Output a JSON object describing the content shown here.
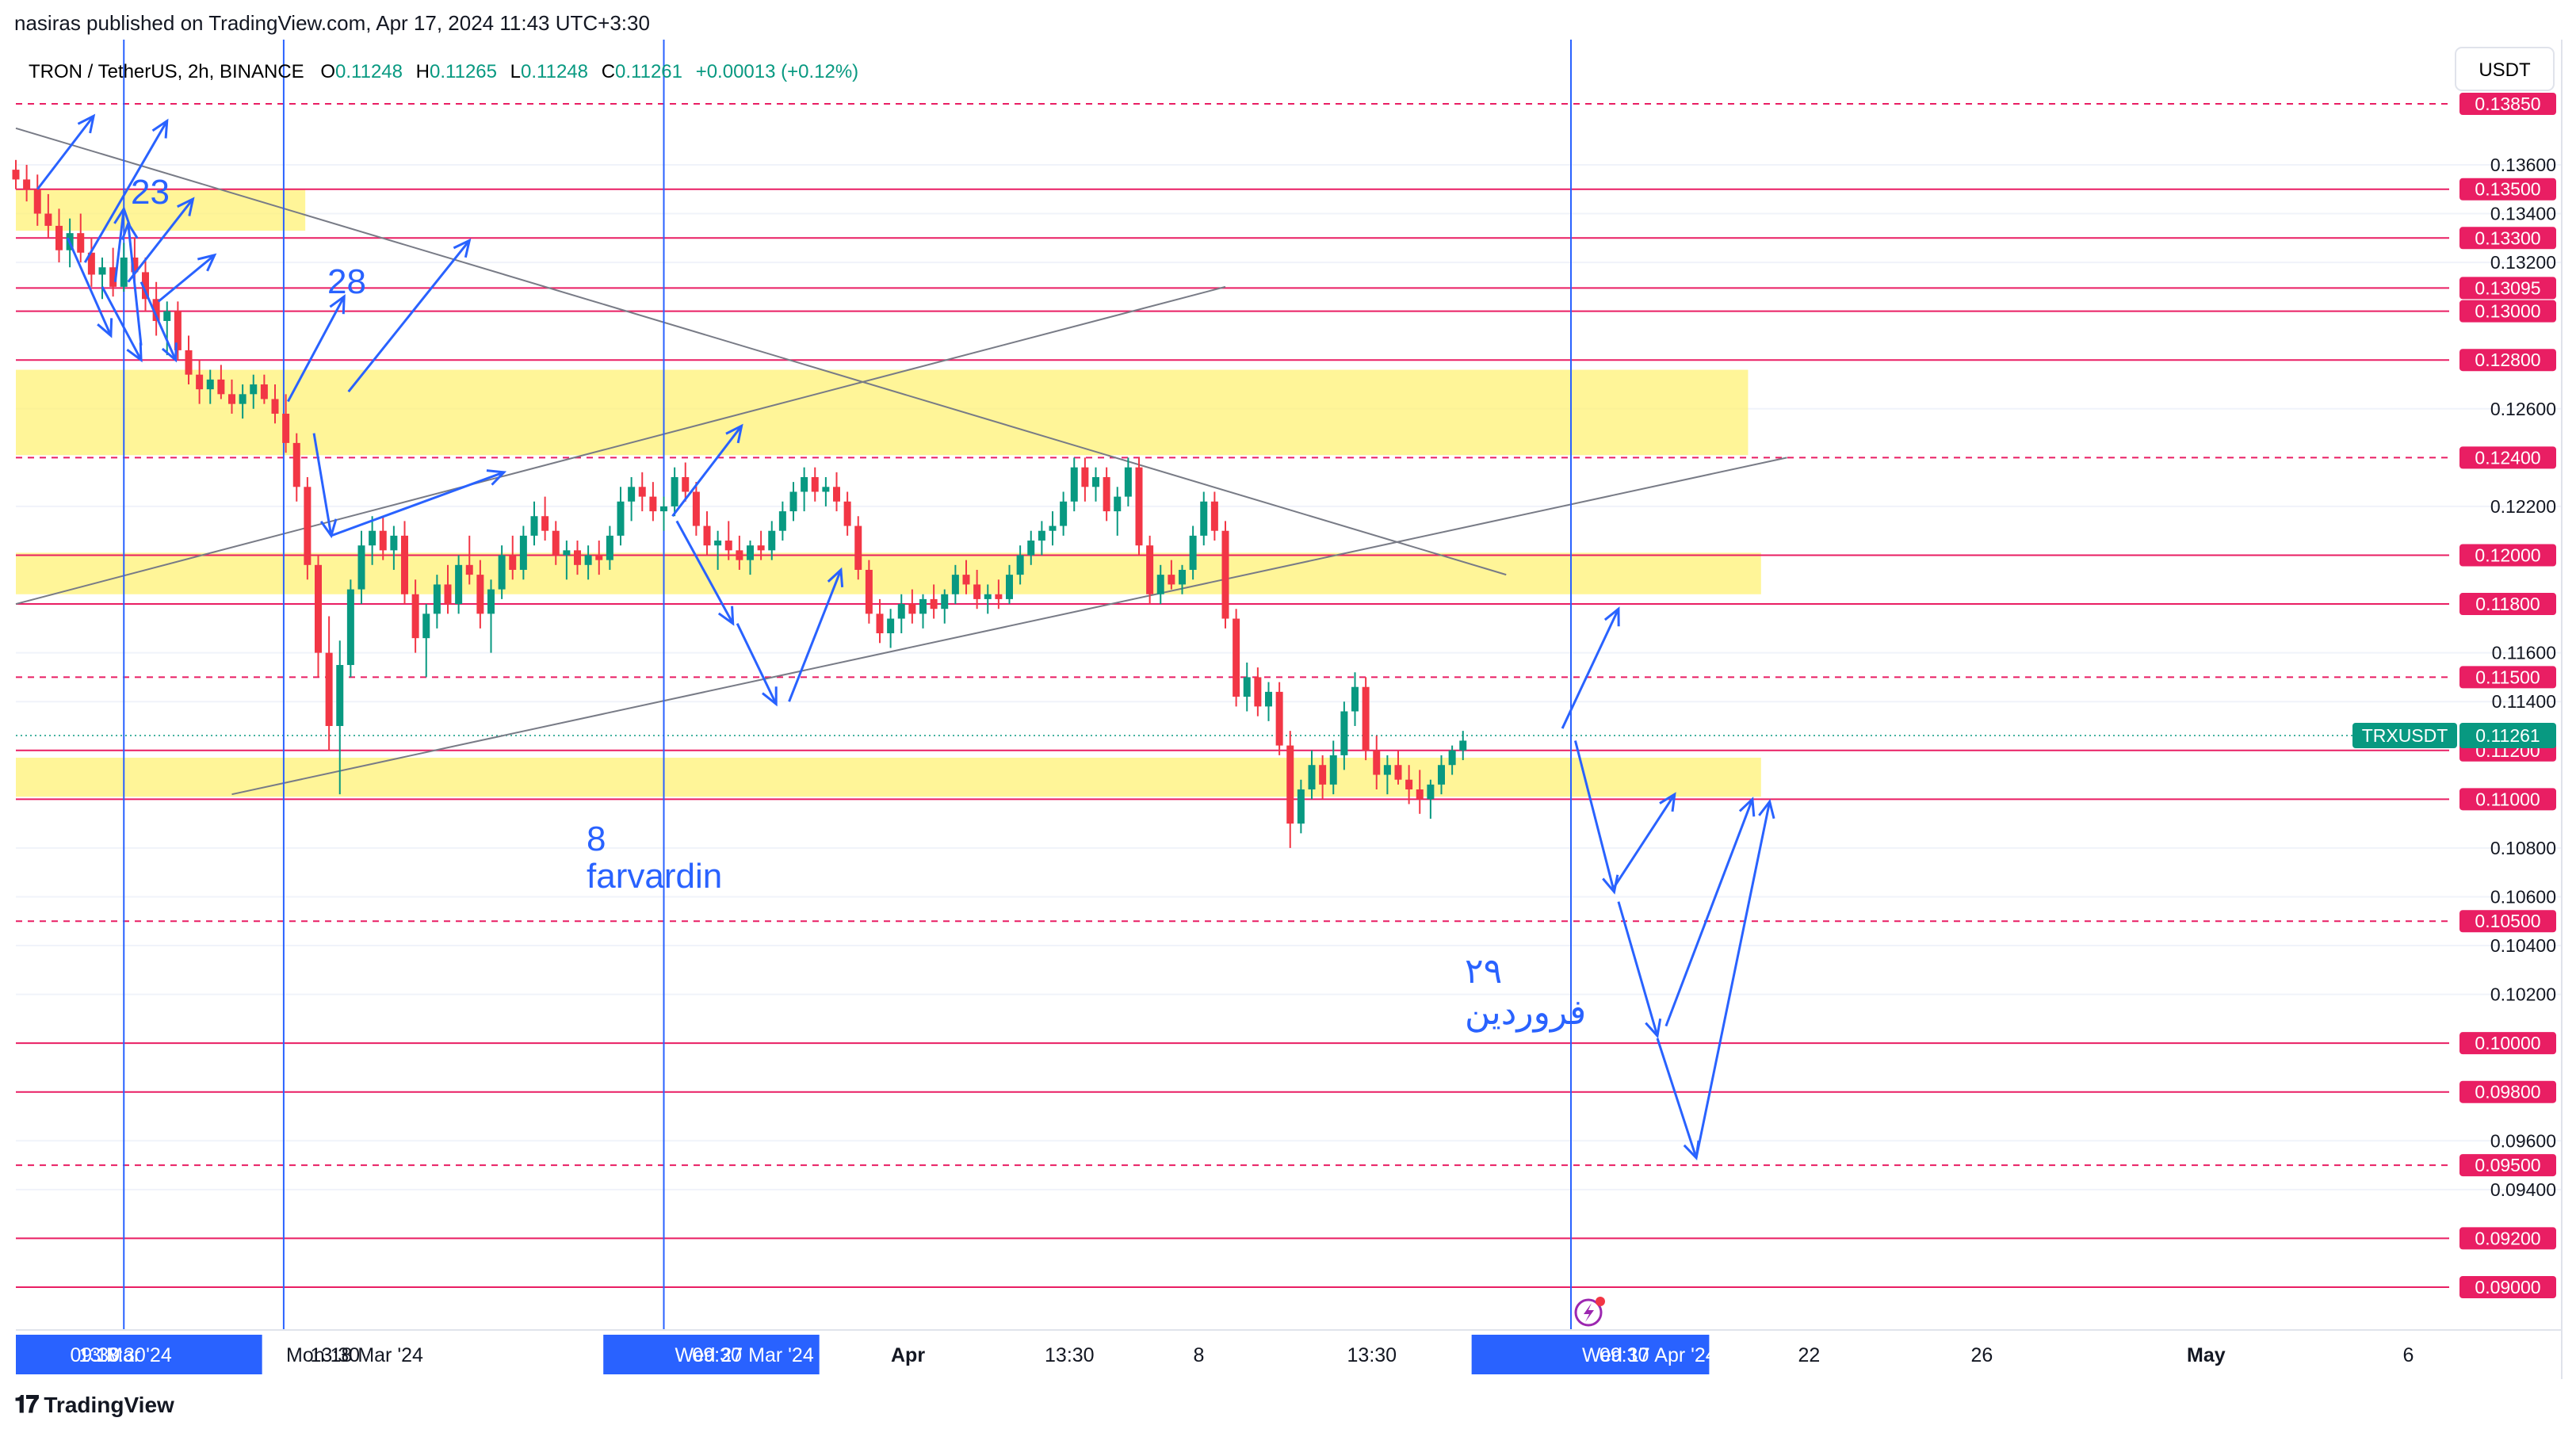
{
  "publish_info": "nasiras published on TradingView.com, Apr 17, 2024 11:43 UTC+3:30",
  "header": {
    "symbol": "TRON / TetherUS, 2h, BINANCE",
    "o_label": "O",
    "o_value": "0.11248",
    "h_label": "H",
    "h_value": "0.11265",
    "l_label": "L",
    "l_value": "0.11248",
    "c_label": "C",
    "c_value": "0.11261",
    "change": "+0.00013 (+0.12%)"
  },
  "currency": "USDT",
  "footer_brand": "TradingView",
  "colors": {
    "up": "#089981",
    "down": "#f23645",
    "level": "#e91e63",
    "zone": "#fff176",
    "vline": "#2962ff",
    "arrow": "#2962ff",
    "trend": "#787b86"
  },
  "annotations": {
    "a23": "23",
    "a28": "28",
    "a8_num": "8",
    "a8_word": "farvardin",
    "a29_num": "۲۹",
    "a29_word": "فروردین"
  },
  "chart_data": {
    "type": "candlestick",
    "title": "TRON / TetherUS, 2h, BINANCE",
    "ylim": [
      0.0892,
      0.1398
    ],
    "x_ticks": [
      {
        "label": "09:30",
        "day": 13.0
      },
      {
        "label": "13 Mar '24",
        "day": 13.2
      },
      {
        "label": "13:30",
        "day": 13.6
      },
      {
        "label": "Mon 18 Mar '24",
        "day": 18.0
      },
      {
        "label": "13:30",
        "day": 18.56
      },
      {
        "label": "Wed 27 Mar '24",
        "day": 27.0
      },
      {
        "label": "09:30",
        "day": 27.4
      },
      {
        "label": "Apr",
        "day": 32.0
      },
      {
        "label": "13:30",
        "day": 35.56
      },
      {
        "label": "8",
        "day": 39.0
      },
      {
        "label": "13:30",
        "day": 42.56
      },
      {
        "label": "Wed 17 Apr '24",
        "day": 48.0
      },
      {
        "label": "09:30",
        "day": 48.4
      },
      {
        "label": "22",
        "day": 53.0
      },
      {
        "label": "26",
        "day": 57.0
      },
      {
        "label": "May",
        "day": 62.0
      },
      {
        "label": "6",
        "day": 67.0
      }
    ],
    "y_ticks": [
      0.136,
      0.134,
      0.132,
      0.126,
      0.122,
      0.116,
      0.114,
      0.108,
      0.106,
      0.104,
      0.102,
      0.096,
      0.094
    ],
    "levels": [
      {
        "price": 0.1385,
        "label": "0.13850",
        "style": "dashed"
      },
      {
        "price": 0.135,
        "label": "0.13500",
        "style": "solid"
      },
      {
        "price": 0.133,
        "label": "0.13300",
        "style": "solid"
      },
      {
        "price": 0.13095,
        "label": "0.13095",
        "style": "solid"
      },
      {
        "price": 0.13,
        "label": "0.13000",
        "style": "solid"
      },
      {
        "price": 0.128,
        "label": "0.12800",
        "style": "solid"
      },
      {
        "price": 0.124,
        "label": "0.12400",
        "style": "dashed"
      },
      {
        "price": 0.12,
        "label": "0.12000",
        "style": "solid"
      },
      {
        "price": 0.118,
        "label": "0.11800",
        "style": "solid"
      },
      {
        "price": 0.115,
        "label": "0.11500",
        "style": "dashed"
      },
      {
        "price": 0.112,
        "label": "0.11200",
        "style": "solid"
      },
      {
        "price": 0.11,
        "label": "0.11000",
        "style": "solid"
      },
      {
        "price": 0.105,
        "label": "0.10500",
        "style": "dashed"
      },
      {
        "price": 0.1,
        "label": "0.10000",
        "style": "solid"
      },
      {
        "price": 0.098,
        "label": "0.09800",
        "style": "solid"
      },
      {
        "price": 0.095,
        "label": "0.09500",
        "style": "dashed"
      },
      {
        "price": 0.092,
        "label": "0.09200",
        "style": "solid"
      },
      {
        "price": 0.09,
        "label": "0.09000",
        "style": "solid"
      }
    ],
    "current_price": {
      "symbol": "TRXUSDT",
      "price": 0.11261,
      "label": "0.11261"
    },
    "zones": [
      {
        "day_start": 12.0,
        "day_end": 18.7,
        "top": 0.135,
        "bottom": 0.1333
      },
      {
        "day_start": 12.0,
        "day_end": 52.1,
        "top": 0.1276,
        "bottom": 0.1241
      },
      {
        "day_start": 12.0,
        "day_end": 52.4,
        "top": 0.1201,
        "bottom": 0.1184
      },
      {
        "day_start": 12.0,
        "day_end": 52.4,
        "top": 0.1117,
        "bottom": 0.1101
      }
    ],
    "vertical_lines_day": [
      14.5,
      18.2,
      27.0,
      48.0
    ],
    "trendlines": [
      {
        "points": [
          [
            12.0,
            0.1375
          ],
          [
            46.5,
            0.1192
          ]
        ]
      },
      {
        "points": [
          [
            12.0,
            0.118
          ],
          [
            40.0,
            0.131
          ]
        ]
      },
      {
        "points": [
          [
            17.0,
            0.1102
          ],
          [
            53.0,
            0.124
          ]
        ]
      }
    ],
    "candles": [
      [
        12.0,
        0.1358,
        0.1362,
        0.135,
        0.1354
      ],
      [
        12.25,
        0.1354,
        0.136,
        0.1345,
        0.135
      ],
      [
        12.5,
        0.135,
        0.1356,
        0.1335,
        0.134
      ],
      [
        12.75,
        0.134,
        0.1348,
        0.133,
        0.1335
      ],
      [
        13.0,
        0.1335,
        0.1342,
        0.132,
        0.1325
      ],
      [
        13.25,
        0.1325,
        0.1338,
        0.1318,
        0.1332
      ],
      [
        13.5,
        0.1332,
        0.134,
        0.132,
        0.1324
      ],
      [
        13.75,
        0.1324,
        0.133,
        0.131,
        0.1315
      ],
      [
        14.0,
        0.1315,
        0.1322,
        0.1305,
        0.1318
      ],
      [
        14.25,
        0.1318,
        0.1326,
        0.1306,
        0.131
      ],
      [
        14.5,
        0.131,
        0.1328,
        0.1308,
        0.1322
      ],
      [
        14.75,
        0.1322,
        0.133,
        0.1312,
        0.1316
      ],
      [
        15.0,
        0.1316,
        0.1322,
        0.13,
        0.1305
      ],
      [
        15.25,
        0.1305,
        0.1312,
        0.129,
        0.1296
      ],
      [
        15.5,
        0.1296,
        0.1304,
        0.1282,
        0.13
      ],
      [
        15.75,
        0.13,
        0.1304,
        0.128,
        0.1284
      ],
      [
        16.0,
        0.1284,
        0.129,
        0.127,
        0.1274
      ],
      [
        16.25,
        0.1274,
        0.128,
        0.1262,
        0.1268
      ],
      [
        16.5,
        0.1268,
        0.1276,
        0.1262,
        0.1272
      ],
      [
        16.75,
        0.1272,
        0.1278,
        0.1264,
        0.1266
      ],
      [
        17.0,
        0.1266,
        0.1272,
        0.1258,
        0.1262
      ],
      [
        17.25,
        0.1262,
        0.127,
        0.1256,
        0.1266
      ],
      [
        17.5,
        0.1266,
        0.1274,
        0.126,
        0.127
      ],
      [
        17.75,
        0.127,
        0.1274,
        0.1262,
        0.1264
      ],
      [
        18.0,
        0.1264,
        0.127,
        0.1254,
        0.1258
      ],
      [
        18.25,
        0.1258,
        0.1266,
        0.1242,
        0.1246
      ],
      [
        18.5,
        0.1246,
        0.125,
        0.1222,
        0.1228
      ],
      [
        18.75,
        0.1228,
        0.1232,
        0.119,
        0.1196
      ],
      [
        19.0,
        0.1196,
        0.12,
        0.115,
        0.116
      ],
      [
        19.25,
        0.116,
        0.1175,
        0.112,
        0.113
      ],
      [
        19.5,
        0.113,
        0.1165,
        0.1102,
        0.1155
      ],
      [
        19.75,
        0.1155,
        0.119,
        0.115,
        0.1186
      ],
      [
        20.0,
        0.1186,
        0.121,
        0.118,
        0.1204
      ],
      [
        20.25,
        0.1204,
        0.1216,
        0.1196,
        0.121
      ],
      [
        20.5,
        0.121,
        0.1216,
        0.1198,
        0.1202
      ],
      [
        20.75,
        0.1202,
        0.1212,
        0.1194,
        0.1208
      ],
      [
        21.0,
        0.1208,
        0.1214,
        0.118,
        0.1184
      ],
      [
        21.25,
        0.1184,
        0.119,
        0.116,
        0.1166
      ],
      [
        21.5,
        0.1166,
        0.118,
        0.115,
        0.1176
      ],
      [
        21.75,
        0.1176,
        0.1192,
        0.117,
        0.1188
      ],
      [
        22.0,
        0.1188,
        0.1196,
        0.1176,
        0.118
      ],
      [
        22.25,
        0.118,
        0.12,
        0.1176,
        0.1196
      ],
      [
        22.5,
        0.1196,
        0.1208,
        0.1188,
        0.1192
      ],
      [
        22.75,
        0.1192,
        0.1198,
        0.117,
        0.1176
      ],
      [
        23.0,
        0.1176,
        0.119,
        0.116,
        0.1186
      ],
      [
        23.25,
        0.1186,
        0.1204,
        0.1182,
        0.12
      ],
      [
        23.5,
        0.12,
        0.1208,
        0.119,
        0.1194
      ],
      [
        23.75,
        0.1194,
        0.1212,
        0.119,
        0.1208
      ],
      [
        24.0,
        0.1208,
        0.1222,
        0.1204,
        0.1216
      ],
      [
        24.25,
        0.1216,
        0.1224,
        0.1206,
        0.121
      ],
      [
        24.5,
        0.121,
        0.1214,
        0.1196,
        0.12
      ],
      [
        24.75,
        0.12,
        0.1206,
        0.119,
        0.1202
      ],
      [
        25.0,
        0.1202,
        0.1206,
        0.1192,
        0.1196
      ],
      [
        25.25,
        0.1196,
        0.1204,
        0.119,
        0.12
      ],
      [
        25.5,
        0.12,
        0.1206,
        0.1192,
        0.1198
      ],
      [
        25.75,
        0.1198,
        0.1212,
        0.1194,
        0.1208
      ],
      [
        26.0,
        0.1208,
        0.1228,
        0.1204,
        0.1222
      ],
      [
        26.25,
        0.1222,
        0.1232,
        0.1214,
        0.1228
      ],
      [
        26.5,
        0.1228,
        0.1234,
        0.1218,
        0.1224
      ],
      [
        26.75,
        0.1224,
        0.123,
        0.1214,
        0.1218
      ],
      [
        27.0,
        0.1218,
        0.1224,
        0.121,
        0.122
      ],
      [
        27.25,
        0.122,
        0.1236,
        0.1216,
        0.1232
      ],
      [
        27.5,
        0.1232,
        0.1238,
        0.1222,
        0.1226
      ],
      [
        27.75,
        0.1226,
        0.123,
        0.1208,
        0.1212
      ],
      [
        28.0,
        0.1212,
        0.1218,
        0.12,
        0.1204
      ],
      [
        28.25,
        0.1204,
        0.121,
        0.1194,
        0.1206
      ],
      [
        28.5,
        0.1206,
        0.1214,
        0.1198,
        0.1202
      ],
      [
        28.75,
        0.1202,
        0.1208,
        0.1194,
        0.1198
      ],
      [
        29.0,
        0.1198,
        0.1206,
        0.1192,
        0.1204
      ],
      [
        29.25,
        0.1204,
        0.121,
        0.1198,
        0.1202
      ],
      [
        29.5,
        0.1202,
        0.1214,
        0.1198,
        0.121
      ],
      [
        29.75,
        0.121,
        0.1222,
        0.1206,
        0.1218
      ],
      [
        30.0,
        0.1218,
        0.123,
        0.1214,
        0.1226
      ],
      [
        30.25,
        0.1226,
        0.1236,
        0.1218,
        0.1232
      ],
      [
        30.5,
        0.1232,
        0.1236,
        0.1222,
        0.1226
      ],
      [
        30.75,
        0.1226,
        0.1232,
        0.122,
        0.1228
      ],
      [
        31.0,
        0.1228,
        0.1234,
        0.1218,
        0.1222
      ],
      [
        31.25,
        0.1222,
        0.1226,
        0.1208,
        0.1212
      ],
      [
        31.5,
        0.1212,
        0.1216,
        0.119,
        0.1194
      ],
      [
        31.75,
        0.1194,
        0.1198,
        0.1172,
        0.1176
      ],
      [
        32.0,
        0.1176,
        0.1182,
        0.1164,
        0.1168
      ],
      [
        32.25,
        0.1168,
        0.1178,
        0.1162,
        0.1174
      ],
      [
        32.5,
        0.1174,
        0.1184,
        0.1168,
        0.118
      ],
      [
        32.75,
        0.118,
        0.1186,
        0.1172,
        0.1176
      ],
      [
        33.0,
        0.1176,
        0.1184,
        0.117,
        0.1182
      ],
      [
        33.25,
        0.1182,
        0.1188,
        0.1174,
        0.1178
      ],
      [
        33.5,
        0.1178,
        0.1186,
        0.1172,
        0.1184
      ],
      [
        33.75,
        0.1184,
        0.1196,
        0.118,
        0.1192
      ],
      [
        34.0,
        0.1192,
        0.1198,
        0.1184,
        0.1188
      ],
      [
        34.25,
        0.1188,
        0.1194,
        0.1178,
        0.1182
      ],
      [
        34.5,
        0.1182,
        0.1188,
        0.1176,
        0.1184
      ],
      [
        34.75,
        0.1184,
        0.119,
        0.1178,
        0.1182
      ],
      [
        35.0,
        0.1182,
        0.1196,
        0.118,
        0.1192
      ],
      [
        35.25,
        0.1192,
        0.1204,
        0.1188,
        0.12
      ],
      [
        35.5,
        0.12,
        0.121,
        0.1196,
        0.1206
      ],
      [
        35.75,
        0.1206,
        0.1214,
        0.12,
        0.121
      ],
      [
        36.0,
        0.121,
        0.1218,
        0.1204,
        0.1212
      ],
      [
        36.25,
        0.1212,
        0.1226,
        0.1208,
        0.1222
      ],
      [
        36.5,
        0.1222,
        0.124,
        0.1218,
        0.1236
      ],
      [
        36.75,
        0.1236,
        0.124,
        0.1222,
        0.1228
      ],
      [
        37.0,
        0.1228,
        0.1236,
        0.1222,
        0.1232
      ],
      [
        37.25,
        0.1232,
        0.1236,
        0.1214,
        0.1218
      ],
      [
        37.5,
        0.1218,
        0.1228,
        0.1208,
        0.1224
      ],
      [
        37.75,
        0.1224,
        0.124,
        0.122,
        0.1236
      ],
      [
        38.0,
        0.1236,
        0.124,
        0.12,
        0.1204
      ],
      [
        38.25,
        0.1204,
        0.1208,
        0.118,
        0.1184
      ],
      [
        38.5,
        0.1184,
        0.1196,
        0.118,
        0.1192
      ],
      [
        38.75,
        0.1192,
        0.1198,
        0.1186,
        0.1188
      ],
      [
        39.0,
        0.1188,
        0.1196,
        0.1184,
        0.1194
      ],
      [
        39.25,
        0.1194,
        0.1212,
        0.119,
        0.1208
      ],
      [
        39.5,
        0.1208,
        0.1226,
        0.1204,
        0.1222
      ],
      [
        39.75,
        0.1222,
        0.1226,
        0.1206,
        0.121
      ],
      [
        40.0,
        0.121,
        0.1214,
        0.117,
        0.1174
      ],
      [
        40.25,
        0.1174,
        0.1178,
        0.1138,
        0.1142
      ],
      [
        40.5,
        0.1142,
        0.1156,
        0.1136,
        0.115
      ],
      [
        40.75,
        0.115,
        0.1154,
        0.1134,
        0.1138
      ],
      [
        41.0,
        0.1138,
        0.1148,
        0.1132,
        0.1144
      ],
      [
        41.25,
        0.1144,
        0.1148,
        0.1118,
        0.1122
      ],
      [
        41.5,
        0.1122,
        0.1128,
        0.108,
        0.109
      ],
      [
        41.75,
        0.109,
        0.1108,
        0.1086,
        0.1104
      ],
      [
        42.0,
        0.1104,
        0.112,
        0.11,
        0.1114
      ],
      [
        42.25,
        0.1114,
        0.1118,
        0.11,
        0.1106
      ],
      [
        42.5,
        0.1106,
        0.1124,
        0.1102,
        0.1118
      ],
      [
        42.75,
        0.1118,
        0.114,
        0.1112,
        0.1136
      ],
      [
        43.0,
        0.1136,
        0.1152,
        0.113,
        0.1146
      ],
      [
        43.25,
        0.1146,
        0.115,
        0.1116,
        0.112
      ],
      [
        43.5,
        0.112,
        0.1126,
        0.1104,
        0.111
      ],
      [
        43.75,
        0.111,
        0.1118,
        0.1102,
        0.1114
      ],
      [
        44.0,
        0.1114,
        0.112,
        0.1106,
        0.1108
      ],
      [
        44.25,
        0.1108,
        0.1114,
        0.1098,
        0.1104
      ],
      [
        44.5,
        0.1104,
        0.1112,
        0.1094,
        0.11
      ],
      [
        44.75,
        0.11,
        0.1108,
        0.1092,
        0.1106
      ],
      [
        45.0,
        0.1106,
        0.1118,
        0.1102,
        0.1114
      ],
      [
        45.25,
        0.1114,
        0.1122,
        0.111,
        0.112
      ],
      [
        45.5,
        0.112,
        0.1128,
        0.1116,
        0.1124
      ]
    ]
  }
}
